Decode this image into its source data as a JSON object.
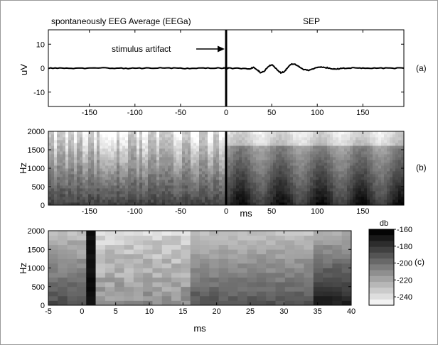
{
  "chart_data": [
    {
      "panel": "(a)",
      "type": "line",
      "left_label": "spontaneously EEG Average (EEGa)",
      "right_label": "SEP",
      "ylabel": "uV",
      "xlim": [
        -195,
        195
      ],
      "ylim": [
        -16,
        16
      ],
      "xticks": [
        -150,
        -100,
        -50,
        0,
        50,
        100,
        150
      ],
      "yticks": [
        -10,
        0,
        10
      ],
      "annotation": "stimulus artifact",
      "series": [
        {
          "x": [
            -195,
            -180,
            -165,
            -150,
            -135,
            -120,
            -105,
            -90,
            -75,
            -60,
            -45,
            -30,
            -15,
            -3,
            0,
            3,
            15,
            25,
            30,
            35,
            38,
            42,
            46,
            50,
            55,
            60,
            64,
            68,
            72,
            76,
            80,
            85,
            90,
            95,
            100,
            105,
            110,
            115,
            120,
            125,
            130,
            140,
            150,
            165,
            180,
            195
          ],
          "values": [
            0,
            0.1,
            -0.1,
            0,
            0.1,
            0,
            -0.1,
            0,
            0.1,
            0,
            -0.1,
            0,
            0,
            0,
            0,
            0,
            -0.1,
            -0.3,
            0.3,
            -1.0,
            -2.0,
            -1.2,
            0.6,
            1.5,
            -0.3,
            -2.0,
            -1.4,
            0.5,
            1.8,
            1.6,
            0.6,
            -0.6,
            -0.9,
            -0.4,
            0.3,
            0.5,
            0.2,
            -0.1,
            -0.4,
            -0.2,
            0,
            0.1,
            0,
            0,
            0,
            0
          ]
        }
      ]
    },
    {
      "panel": "(b)",
      "type": "heatmap",
      "xlabel": "ms",
      "ylabel": "Hz",
      "xlim": [
        -195,
        195
      ],
      "ylim": [
        0,
        2000
      ],
      "xticks": [
        -150,
        -100,
        -50,
        0,
        50,
        100,
        150
      ],
      "yticks": [
        0,
        500,
        1000,
        1500,
        2000
      ]
    },
    {
      "panel": "(c)",
      "type": "heatmap",
      "xlabel": "ms",
      "ylabel": "Hz",
      "xlim": [
        -5,
        40
      ],
      "ylim": [
        0,
        2000
      ],
      "xticks": [
        -5,
        0,
        5,
        10,
        15,
        20,
        25,
        30,
        35,
        40
      ],
      "yticks": [
        0,
        500,
        1000,
        1500,
        2000
      ],
      "colorbar": {
        "label": "db",
        "range": [
          -250,
          -160
        ],
        "ticks": [
          -160,
          -180,
          -200,
          -220,
          -240
        ]
      }
    }
  ]
}
